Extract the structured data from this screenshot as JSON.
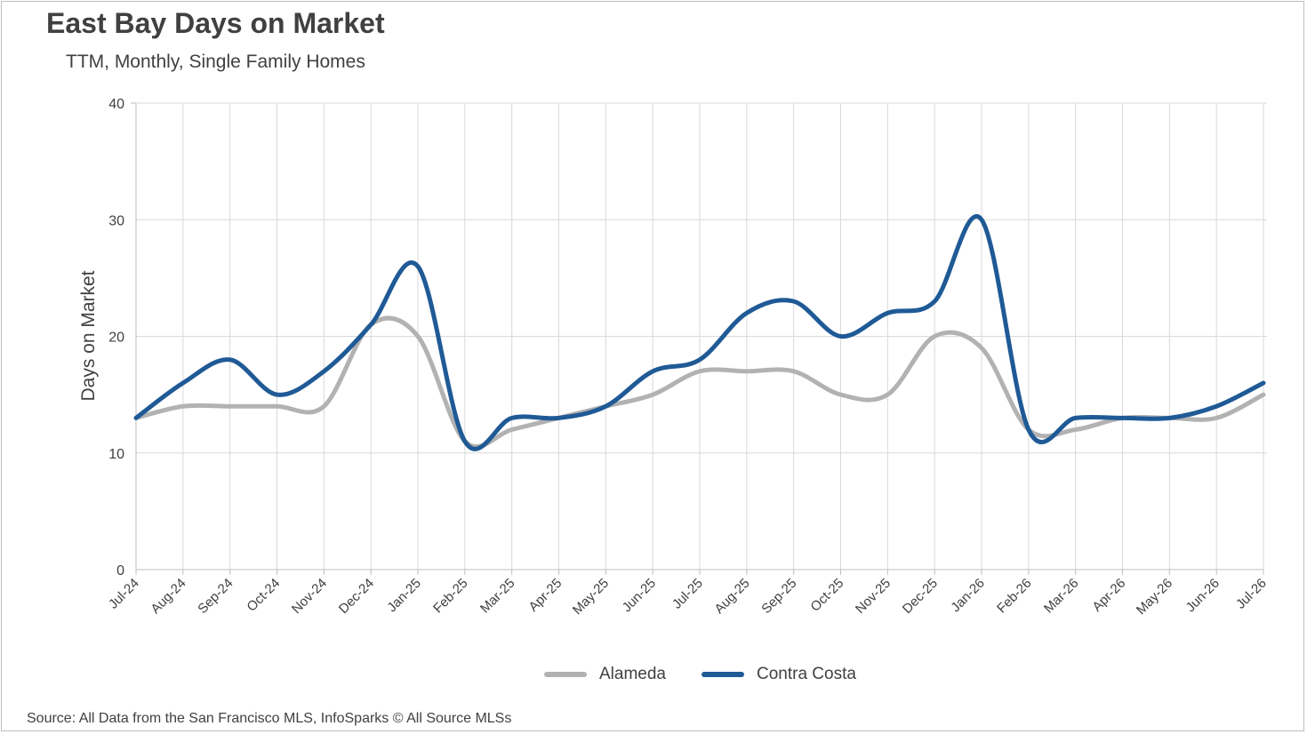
{
  "title": "East Bay Days on Market",
  "subtitle": "TTM, Monthly, Single Family Homes",
  "source": "Source: All Data from the San Francisco MLS, InfoSparks © All Source MLSs",
  "colors": {
    "alameda": "#b2b2b2",
    "contra_costa": "#1f5a96",
    "grid": "#d9d9d9",
    "axis": "#bfbfbf",
    "text": "#404040"
  },
  "chart_data": {
    "type": "line",
    "title": "East Bay Days on Market",
    "subtitle": "TTM, Monthly, Single Family Homes",
    "xlabel": "",
    "ylabel": "Days on Market",
    "ylim": [
      0,
      40
    ],
    "yticks": [
      0,
      10,
      20,
      30,
      40
    ],
    "grid": true,
    "legend_position": "bottom",
    "categories": [
      "Jul-24",
      "Aug-24",
      "Sep-24",
      "Oct-24",
      "Nov-24",
      "Dec-24",
      "Jan-25",
      "Feb-25",
      "Mar-25",
      "Apr-25",
      "May-25",
      "Jun-25",
      "Jul-25",
      "Aug-25",
      "Sep-25",
      "Oct-25",
      "Nov-25",
      "Dec-25",
      "Jan-26",
      "Feb-26",
      "Mar-26",
      "Apr-26",
      "May-26",
      "Jun-26",
      "Jul-26"
    ],
    "series": [
      {
        "name": "Alameda",
        "color": "#b2b2b2",
        "values": [
          13,
          14,
          14,
          14,
          14,
          21,
          20,
          11,
          12,
          13,
          14,
          15,
          17,
          17,
          17,
          15,
          15,
          20,
          19,
          12,
          12,
          13,
          13,
          13,
          15
        ]
      },
      {
        "name": "Contra Costa",
        "color": "#1f5a96",
        "values": [
          13,
          16,
          18,
          15,
          17,
          21,
          26,
          11,
          13,
          13,
          14,
          17,
          18,
          22,
          23,
          20,
          22,
          23,
          30,
          12,
          13,
          13,
          13,
          14,
          16
        ]
      }
    ]
  }
}
